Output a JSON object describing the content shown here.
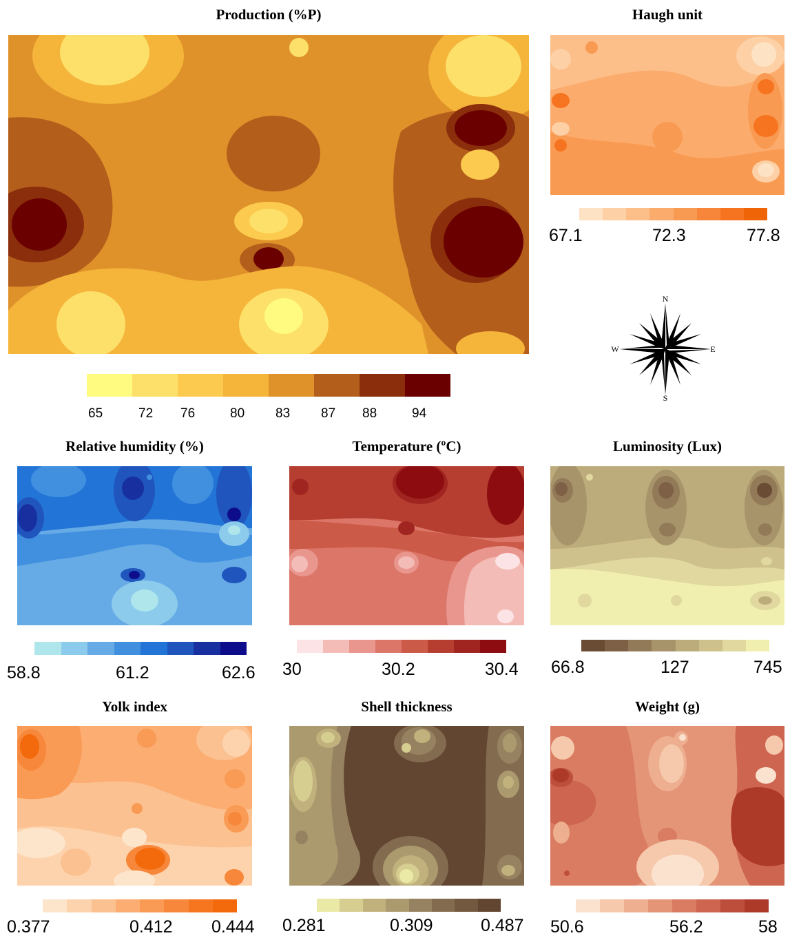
{
  "panels": {
    "production": {
      "title": "Production (%P)",
      "legend_values": [
        "65",
        "72",
        "76",
        "80",
        "83",
        "87",
        "88",
        "94"
      ],
      "colors": [
        "#fefb80",
        "#fde06a",
        "#fbca4e",
        "#f5b43a",
        "#e0922a",
        "#b45e1c",
        "#8b2e0c",
        "#6b0000"
      ]
    },
    "haugh": {
      "title": "Haugh unit",
      "legend_values": [
        "67.1",
        "72.3",
        "77.8"
      ],
      "colors": [
        "#fde2c4",
        "#fdd0a6",
        "#fcbf8a",
        "#fbab6c",
        "#f99a52",
        "#f8863a",
        "#f67420",
        "#f06408"
      ]
    },
    "humidity": {
      "title": "Relative humidity (%)",
      "legend_values": [
        "58.8",
        "61.2",
        "62.6"
      ],
      "colors": [
        "#aee6ec",
        "#8ccbec",
        "#66abe6",
        "#4190e0",
        "#2274d6",
        "#1f55bd",
        "#18309f",
        "#0d0d8c"
      ]
    },
    "temperature": {
      "title": "Temperature (ºC)",
      "legend_values": [
        "30",
        "30.2",
        "30.4"
      ],
      "colors": [
        "#fce4e6",
        "#f4bcb6",
        "#e9968e",
        "#dc7668",
        "#cc5a48",
        "#b63e30",
        "#a02420",
        "#8c0c10"
      ]
    },
    "luminosity": {
      "title": "Luminosity (Lux)",
      "legend_values": [
        "66.8",
        "127",
        "745"
      ],
      "colors": [
        "#6a4b33",
        "#7d6045",
        "#927a58",
        "#a8946a",
        "#bcab7b",
        "#cfc18c",
        "#e0d89e",
        "#f1efb0"
      ]
    },
    "yolk": {
      "title": "Yolk index",
      "legend_values": [
        "0.377",
        "0.412",
        "0.444"
      ],
      "colors": [
        "#fde5cc",
        "#fdd3ad",
        "#fcc190",
        "#fbad72",
        "#f99a55",
        "#f7873a",
        "#f5761f",
        "#f26a0c"
      ]
    },
    "shell": {
      "title": "Shell thickness",
      "legend_values": [
        "0.281",
        "0.309",
        "0.487"
      ],
      "colors": [
        "#ebe9a6",
        "#d6cd91",
        "#c0b17d",
        "#aa9a6e",
        "#968260",
        "#836b50",
        "#735840",
        "#624632"
      ]
    },
    "weight": {
      "title": "Weight (g)",
      "legend_values": [
        "50.6",
        "56.2",
        "58"
      ],
      "colors": [
        "#fbe2cf",
        "#f6c9ad",
        "#eeae90",
        "#e59577",
        "#d97c62",
        "#cd6550",
        "#bd4e3b",
        "#ad3a28"
      ]
    }
  },
  "compass": {
    "n_label": "N",
    "s_label": "S",
    "e_label": "E",
    "w_label": "W"
  }
}
